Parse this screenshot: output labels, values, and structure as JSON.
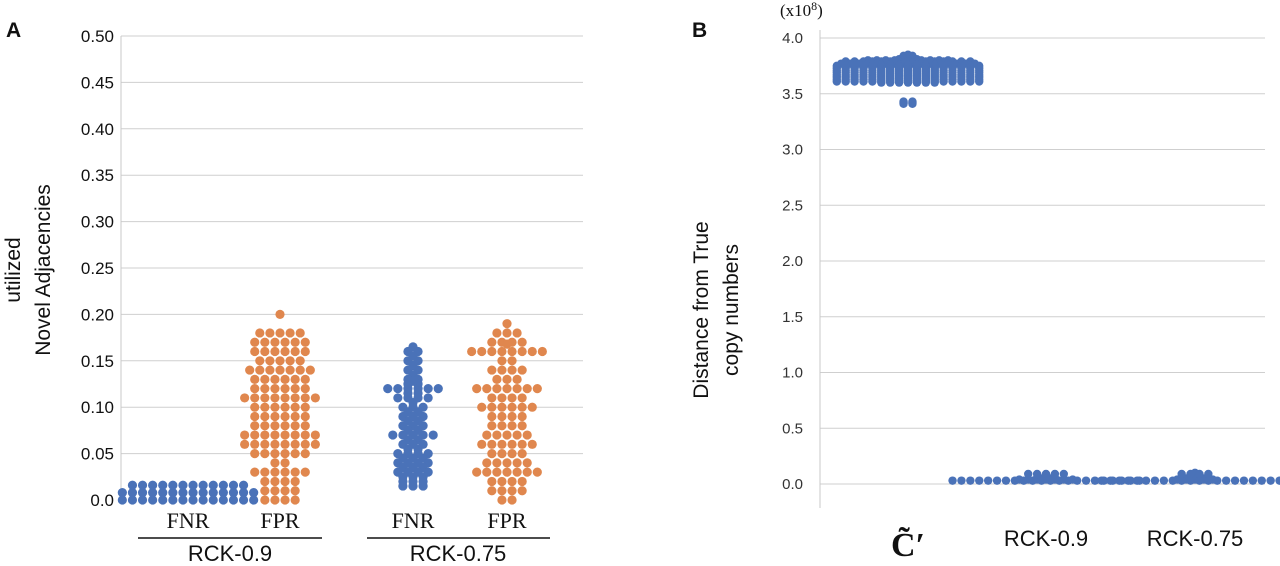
{
  "chart_data": [
    {
      "panel": "A",
      "type": "scatter",
      "ylabel_lines": [
        "utilized",
        "Novel Adjacencies"
      ],
      "yticks": [
        0.0,
        0.05,
        0.1,
        0.15,
        0.2,
        0.25,
        0.3,
        0.35,
        0.4,
        0.45,
        0.5
      ],
      "ytick_labels": [
        "0.0",
        "0.05",
        "0.10",
        "0.15",
        "0.20",
        "0.25",
        "0.30",
        "0.35",
        "0.40",
        "0.45",
        "0.50"
      ],
      "ylim": [
        0,
        0.5
      ],
      "grid": true,
      "groups": [
        "RCK-0.9",
        "RCK-0.75"
      ],
      "series": [
        {
          "label": "FNR",
          "group": "RCK-0.9",
          "color": "#4a72b8",
          "values": [
            0.0,
            0.0,
            0.0,
            0.0,
            0.0,
            0.0,
            0.0,
            0.0,
            0.0,
            0.0,
            0.0,
            0.0,
            0.0,
            0.0,
            0.0,
            0.0,
            0.0,
            0.0,
            0.0,
            0.0,
            0.0,
            0.0,
            0.0,
            0.0,
            0.0,
            0.0,
            0.0,
            0.0,
            0.0,
            0.0,
            0.0,
            0.0,
            0.0,
            0.0,
            0.0,
            0.0,
            0.0,
            0.0,
            0.0,
            0.0
          ]
        },
        {
          "label": "FPR",
          "group": "RCK-0.9",
          "color": "#e0874e",
          "values": [
            0.2,
            0.18,
            0.18,
            0.18,
            0.18,
            0.18,
            0.17,
            0.17,
            0.17,
            0.17,
            0.17,
            0.17,
            0.16,
            0.16,
            0.16,
            0.16,
            0.16,
            0.16,
            0.15,
            0.15,
            0.15,
            0.15,
            0.15,
            0.14,
            0.14,
            0.14,
            0.14,
            0.14,
            0.14,
            0.14,
            0.13,
            0.13,
            0.13,
            0.13,
            0.13,
            0.13,
            0.12,
            0.12,
            0.12,
            0.12,
            0.12,
            0.12,
            0.11,
            0.11,
            0.11,
            0.11,
            0.11,
            0.11,
            0.11,
            0.11,
            0.1,
            0.1,
            0.1,
            0.1,
            0.1,
            0.1,
            0.09,
            0.09,
            0.09,
            0.09,
            0.09,
            0.09,
            0.08,
            0.08,
            0.08,
            0.08,
            0.08,
            0.08,
            0.07,
            0.07,
            0.07,
            0.07,
            0.07,
            0.07,
            0.07,
            0.07,
            0.06,
            0.06,
            0.06,
            0.06,
            0.06,
            0.06,
            0.06,
            0.06,
            0.05,
            0.05,
            0.05,
            0.05,
            0.05,
            0.05,
            0.04,
            0.04,
            0.03,
            0.03,
            0.03,
            0.03,
            0.03,
            0.03,
            0.02,
            0.02,
            0.02,
            0.02,
            0.01,
            0.01,
            0.01,
            0.01,
            0.0,
            0.0,
            0.0,
            0.0
          ]
        },
        {
          "label": "FNR",
          "group": "RCK-0.75",
          "color": "#4a72b8",
          "values": [
            0.165,
            0.16,
            0.16,
            0.155,
            0.15,
            0.15,
            0.145,
            0.14,
            0.14,
            0.135,
            0.13,
            0.13,
            0.125,
            0.125,
            0.12,
            0.12,
            0.12,
            0.12,
            0.12,
            0.12,
            0.12,
            0.115,
            0.115,
            0.11,
            0.11,
            0.11,
            0.11,
            0.105,
            0.1,
            0.1,
            0.1,
            0.095,
            0.095,
            0.09,
            0.09,
            0.09,
            0.085,
            0.085,
            0.08,
            0.08,
            0.08,
            0.075,
            0.075,
            0.07,
            0.07,
            0.07,
            0.07,
            0.07,
            0.065,
            0.065,
            0.06,
            0.06,
            0.06,
            0.055,
            0.055,
            0.05,
            0.05,
            0.05,
            0.05,
            0.045,
            0.045,
            0.045,
            0.04,
            0.04,
            0.04,
            0.04,
            0.035,
            0.035,
            0.035,
            0.03,
            0.03,
            0.03,
            0.03,
            0.025,
            0.025,
            0.025,
            0.02,
            0.02,
            0.02,
            0.015,
            0.015,
            0.015
          ]
        },
        {
          "label": "FPR",
          "group": "RCK-0.75",
          "color": "#e0874e",
          "values": [
            0.19,
            0.18,
            0.18,
            0.18,
            0.17,
            0.17,
            0.17,
            0.17,
            0.16,
            0.16,
            0.16,
            0.16,
            0.16,
            0.16,
            0.16,
            0.16,
            0.16,
            0.15,
            0.15,
            0.14,
            0.14,
            0.14,
            0.14,
            0.13,
            0.13,
            0.13,
            0.12,
            0.12,
            0.12,
            0.12,
            0.12,
            0.12,
            0.12,
            0.11,
            0.11,
            0.11,
            0.11,
            0.1,
            0.1,
            0.1,
            0.1,
            0.1,
            0.1,
            0.09,
            0.09,
            0.09,
            0.09,
            0.08,
            0.08,
            0.08,
            0.08,
            0.07,
            0.07,
            0.07,
            0.07,
            0.07,
            0.06,
            0.06,
            0.06,
            0.06,
            0.06,
            0.06,
            0.05,
            0.05,
            0.05,
            0.05,
            0.04,
            0.04,
            0.04,
            0.04,
            0.04,
            0.03,
            0.03,
            0.03,
            0.03,
            0.03,
            0.03,
            0.03,
            0.02,
            0.02,
            0.02,
            0.02,
            0.01,
            0.01,
            0.01,
            0.01,
            0.0,
            0.0
          ]
        }
      ]
    },
    {
      "panel": "B",
      "type": "scatter",
      "ylabel_lines": [
        "Distance from True",
        "copy numbers"
      ],
      "yunit": "(x10",
      "yunit_exp": "8",
      "yunit_close": ")",
      "yticks": [
        0.0,
        0.5,
        1.0,
        1.5,
        2.0,
        2.5,
        3.0,
        3.5,
        4.0
      ],
      "ytick_labels": [
        "0.0",
        "0.5",
        "1.0",
        "1.5",
        "2.0",
        "2.5",
        "3.0",
        "3.5",
        "4.0"
      ],
      "ylim": [
        0,
        4.0
      ],
      "grid": true,
      "categories": [
        "C̃′",
        "RCK-0.9",
        "RCK-0.75"
      ],
      "color": "#4a72b8",
      "series": [
        {
          "label": "C̃′",
          "values": [
            3.85,
            3.84,
            3.84,
            3.83,
            3.82,
            3.82,
            3.81,
            3.81,
            3.81,
            3.8,
            3.8,
            3.8,
            3.8,
            3.8,
            3.8,
            3.8,
            3.8,
            3.8,
            3.8,
            3.79,
            3.79,
            3.79,
            3.79,
            3.79,
            3.79,
            3.79,
            3.79,
            3.79,
            3.79,
            3.79,
            3.79,
            3.79,
            3.79,
            3.79,
            3.78,
            3.78,
            3.78,
            3.78,
            3.78,
            3.78,
            3.77,
            3.77,
            3.77,
            3.77,
            3.77,
            3.77,
            3.77,
            3.77,
            3.77,
            3.77,
            3.77,
            3.77,
            3.77,
            3.77,
            3.77,
            3.77,
            3.76,
            3.76,
            3.76,
            3.76,
            3.76,
            3.76,
            3.76,
            3.75,
            3.75,
            3.75,
            3.75,
            3.75,
            3.75,
            3.75,
            3.75,
            3.75,
            3.75,
            3.75,
            3.75,
            3.75,
            3.75,
            3.75,
            3.75,
            3.75,
            3.74,
            3.74,
            3.74,
            3.74,
            3.74,
            3.74,
            3.74,
            3.73,
            3.73,
            3.73,
            3.73,
            3.73,
            3.73,
            3.73,
            3.73,
            3.73,
            3.73,
            3.73,
            3.73,
            3.73,
            3.73,
            3.73,
            3.73,
            3.73,
            3.72,
            3.72,
            3.72,
            3.72,
            3.72,
            3.72,
            3.72,
            3.71,
            3.71,
            3.71,
            3.71,
            3.71,
            3.71,
            3.71,
            3.71,
            3.71,
            3.71,
            3.71,
            3.71,
            3.71,
            3.71,
            3.71,
            3.71,
            3.71,
            3.7,
            3.7,
            3.7,
            3.7,
            3.7,
            3.7,
            3.7,
            3.69,
            3.69,
            3.69,
            3.69,
            3.69,
            3.69,
            3.69,
            3.69,
            3.69,
            3.69,
            3.69,
            3.69,
            3.69,
            3.69,
            3.69,
            3.69,
            3.69,
            3.68,
            3.68,
            3.68,
            3.68,
            3.68,
            3.68,
            3.68,
            3.67,
            3.67,
            3.67,
            3.67,
            3.67,
            3.67,
            3.67,
            3.67,
            3.67,
            3.67,
            3.67,
            3.67,
            3.67,
            3.67,
            3.67,
            3.67,
            3.67,
            3.66,
            3.66,
            3.66,
            3.66,
            3.66,
            3.66,
            3.66,
            3.65,
            3.65,
            3.65,
            3.65,
            3.65,
            3.65,
            3.65,
            3.65,
            3.65,
            3.65,
            3.65,
            3.65,
            3.65,
            3.65,
            3.65,
            3.65,
            3.65,
            3.64,
            3.64,
            3.64,
            3.64,
            3.64,
            3.64,
            3.64,
            3.63,
            3.63,
            3.63,
            3.63,
            3.63,
            3.63,
            3.63,
            3.63,
            3.63,
            3.63,
            3.63,
            3.63,
            3.63,
            3.63,
            3.63,
            3.63,
            3.63,
            3.62,
            3.62,
            3.62,
            3.62,
            3.62,
            3.62,
            3.62,
            3.61,
            3.61,
            3.61,
            3.61,
            3.61,
            3.61,
            3.61,
            3.61,
            3.61,
            3.61,
            3.61,
            3.61,
            3.61,
            3.61,
            3.61,
            3.61,
            3.61,
            3.6,
            3.6,
            3.6,
            3.6,
            3.6,
            3.6,
            3.6,
            3.43,
            3.43,
            3.42,
            3.42,
            3.41,
            3.41
          ]
        },
        {
          "label": "RCK-0.9",
          "values": [
            0.07,
            0.06,
            0.06,
            0.06,
            0.05,
            0.05,
            0.04,
            0.04,
            0.04,
            0.04,
            0.04,
            0.04,
            0.04,
            0.03,
            0.03,
            0.03,
            0.03,
            0.03,
            0.03,
            0.03,
            0.03,
            0.03,
            0.03,
            0.03,
            0.03,
            0.03,
            0.03,
            0.03,
            0.03,
            0.03,
            0.03,
            0.03,
            0.03,
            0.03,
            0.03,
            0.03,
            0.03,
            0.03,
            0.03,
            0.03
          ]
        },
        {
          "label": "RCK-0.75",
          "values": [
            0.1,
            0.08,
            0.07,
            0.07,
            0.06,
            0.06,
            0.05,
            0.05,
            0.05,
            0.04,
            0.04,
            0.04,
            0.04,
            0.04,
            0.03,
            0.03,
            0.03,
            0.03,
            0.03,
            0.03,
            0.03,
            0.03,
            0.03,
            0.03,
            0.03,
            0.03,
            0.03,
            0.03,
            0.03,
            0.03,
            0.03,
            0.03,
            0.03,
            0.03,
            0.03,
            0.03,
            0.03,
            0.03,
            0.03,
            0.03
          ]
        }
      ]
    }
  ]
}
